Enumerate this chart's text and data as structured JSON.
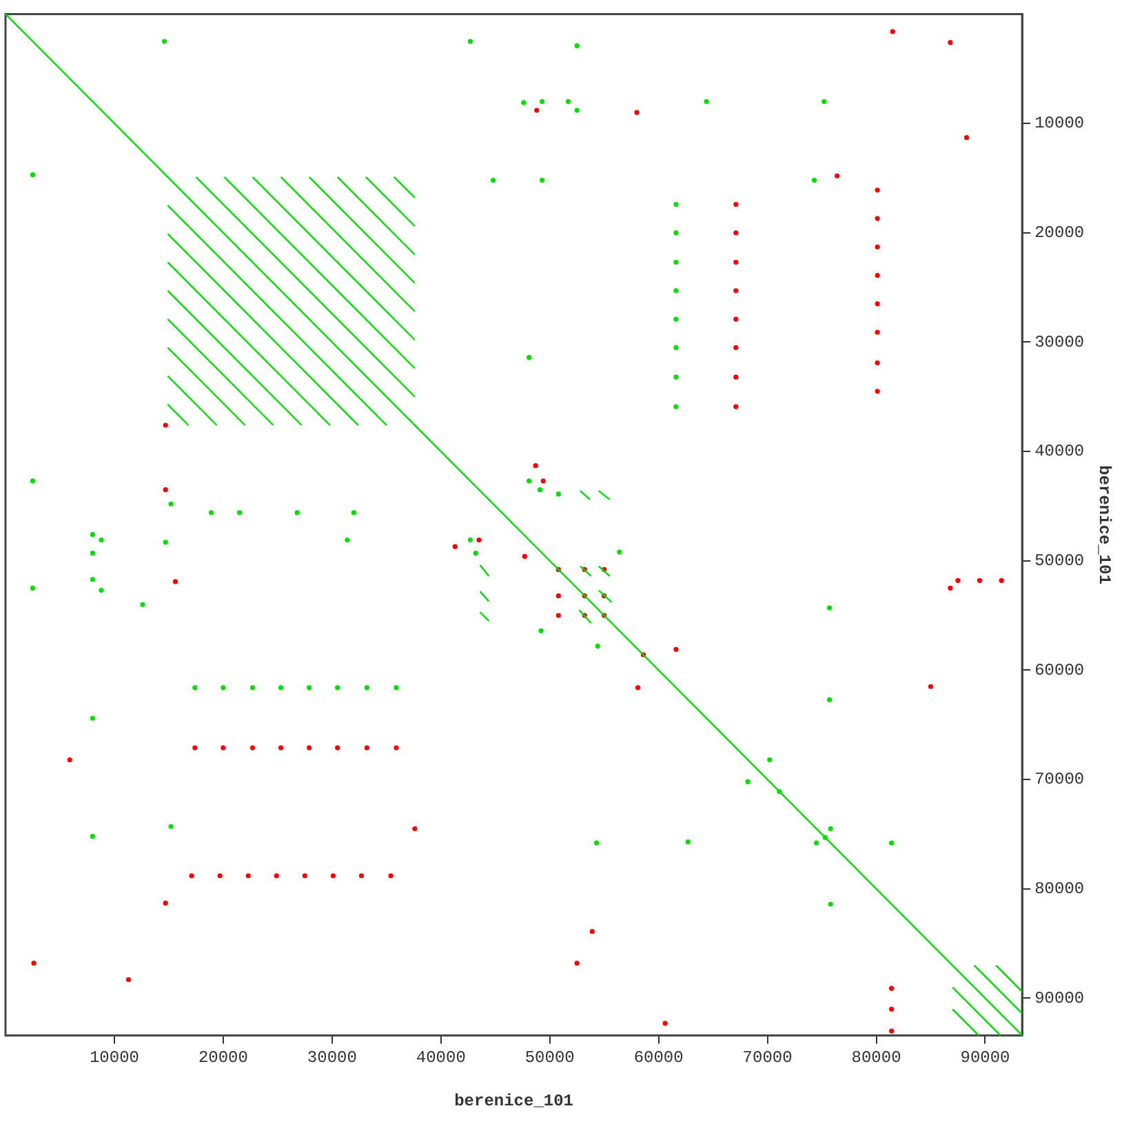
{
  "chart_data": {
    "type": "scatter",
    "xlabel": "berenice_101",
    "ylabel": "berenice_101",
    "xlim": [
      0,
      93400
    ],
    "ylim": [
      93400,
      0
    ],
    "xticks": [
      10000,
      20000,
      30000,
      40000,
      50000,
      60000,
      70000,
      80000,
      90000
    ],
    "yticks": [
      10000,
      20000,
      30000,
      40000,
      50000,
      60000,
      70000,
      80000,
      90000
    ],
    "legend": false,
    "series": [
      {
        "type": "line",
        "marker": "none",
        "color": "#00e000",
        "x": [
          0,
          93400
        ],
        "values": [
          0,
          93400
        ]
      },
      {
        "type": "line",
        "marker": "none",
        "color": "#00e000",
        "x": [
          17500,
          37600
        ],
        "values": [
          14900,
          35000
        ]
      },
      {
        "type": "line",
        "marker": "none",
        "color": "#00e000",
        "x": [
          20100,
          37600
        ],
        "values": [
          14900,
          32400
        ]
      },
      {
        "type": "line",
        "marker": "none",
        "color": "#00e000",
        "x": [
          22700,
          37600
        ],
        "values": [
          14900,
          29800
        ]
      },
      {
        "type": "line",
        "marker": "none",
        "color": "#00e000",
        "x": [
          25300,
          37600
        ],
        "values": [
          14900,
          27200
        ]
      },
      {
        "type": "line",
        "marker": "none",
        "color": "#00e000",
        "x": [
          27900,
          37600
        ],
        "values": [
          14900,
          24600
        ]
      },
      {
        "type": "line",
        "marker": "none",
        "color": "#00e000",
        "x": [
          30500,
          37600
        ],
        "values": [
          14900,
          22000
        ]
      },
      {
        "type": "line",
        "marker": "none",
        "color": "#00e000",
        "x": [
          33100,
          37600
        ],
        "values": [
          14900,
          19400
        ]
      },
      {
        "type": "line",
        "marker": "none",
        "color": "#00e000",
        "x": [
          35700,
          37600
        ],
        "values": [
          14900,
          16800
        ]
      },
      {
        "type": "line",
        "marker": "none",
        "color": "#00e000",
        "x": [
          14900,
          35000
        ],
        "values": [
          17500,
          37600
        ]
      },
      {
        "type": "line",
        "marker": "none",
        "color": "#00e000",
        "x": [
          14900,
          32400
        ],
        "values": [
          20100,
          37600
        ]
      },
      {
        "type": "line",
        "marker": "none",
        "color": "#00e000",
        "x": [
          14900,
          29800
        ],
        "values": [
          22700,
          37600
        ]
      },
      {
        "type": "line",
        "marker": "none",
        "color": "#00e000",
        "x": [
          14900,
          27200
        ],
        "values": [
          25300,
          37600
        ]
      },
      {
        "type": "line",
        "marker": "none",
        "color": "#00e000",
        "x": [
          14900,
          24600
        ],
        "values": [
          27900,
          37600
        ]
      },
      {
        "type": "line",
        "marker": "none",
        "color": "#00e000",
        "x": [
          14900,
          22000
        ],
        "values": [
          30500,
          37600
        ]
      },
      {
        "type": "line",
        "marker": "none",
        "color": "#00e000",
        "x": [
          14900,
          19400
        ],
        "values": [
          33100,
          37600
        ]
      },
      {
        "type": "line",
        "marker": "none",
        "color": "#00e000",
        "x": [
          14900,
          16800
        ],
        "values": [
          35700,
          37600
        ]
      },
      {
        "type": "line",
        "marker": "none",
        "color": "#00dc00",
        "x": [
          89000,
          93400
        ],
        "values": [
          87000,
          91400
        ]
      },
      {
        "type": "line",
        "marker": "none",
        "color": "#00d200",
        "x": [
          91000,
          93400
        ],
        "values": [
          87000,
          89400
        ]
      },
      {
        "type": "line",
        "marker": "none",
        "color": "#02de02",
        "x": [
          87000,
          91400
        ],
        "values": [
          89000,
          93400
        ]
      },
      {
        "type": "line",
        "marker": "none",
        "color": "#04d804",
        "x": [
          87000,
          89400
        ],
        "values": [
          91000,
          93400
        ]
      },
      {
        "type": "line",
        "marker": "none",
        "color": "#00dc00",
        "x": [
          43600,
          44400
        ],
        "values": [
          50400,
          51400
        ]
      },
      {
        "type": "line",
        "marker": "none",
        "color": "#00d200",
        "x": [
          43600,
          44400
        ],
        "values": [
          52800,
          53700
        ]
      },
      {
        "type": "line",
        "marker": "none",
        "color": "#00e600",
        "x": [
          43600,
          44400
        ],
        "values": [
          54700,
          55500
        ]
      },
      {
        "type": "line",
        "marker": "none",
        "color": "#02de02",
        "x": [
          52800,
          53800
        ],
        "values": [
          50500,
          51400
        ]
      },
      {
        "type": "line",
        "marker": "none",
        "color": "#04d804",
        "x": [
          54500,
          55500
        ],
        "values": [
          50500,
          51400
        ]
      },
      {
        "type": "line",
        "marker": "none",
        "color": "#00ec04",
        "x": [
          54500,
          55700
        ],
        "values": [
          52700,
          53800
        ]
      },
      {
        "type": "line",
        "marker": "none",
        "color": "#06e006",
        "x": [
          52700,
          53800
        ],
        "values": [
          54500,
          55700
        ]
      },
      {
        "type": "line",
        "marker": "none",
        "color": "#00d808",
        "x": [
          52800,
          53700
        ],
        "values": [
          43600,
          44400
        ]
      },
      {
        "type": "line",
        "marker": "none",
        "color": "#03e803",
        "x": [
          54500,
          55500
        ],
        "values": [
          43600,
          44400
        ]
      },
      {
        "type": "scatter",
        "marker": "circle",
        "color": "#00e000",
        "x": [
          14600,
          42700,
          47600,
          49300,
          51700,
          52500,
          52500,
          64400,
          75200,
          2500,
          44800,
          49300,
          74300,
          48100,
          61600,
          61600,
          61600,
          61600,
          61600,
          61600,
          61600,
          61600,
          2500,
          48100,
          49100,
          50800,
          56400,
          15200,
          18900,
          21500,
          26800,
          32000,
          31400,
          42700,
          8000,
          8800,
          8000,
          14700,
          43200,
          2500,
          8000,
          8800,
          12600,
          49200,
          17400,
          20000,
          22700,
          25300,
          27900,
          30500,
          33200,
          35900,
          8000,
          15200,
          8000,
          75700,
          54400,
          75700,
          70200,
          68200,
          71100,
          75800,
          74500,
          75300,
          54300,
          62700,
          81400,
          75800
        ],
        "values": [
          2500,
          2500,
          8100,
          8000,
          8000,
          2900,
          8800,
          8000,
          8000,
          14700,
          15200,
          15200,
          15200,
          31400,
          17400,
          20000,
          22700,
          25300,
          27900,
          30500,
          33200,
          35900,
          42700,
          42700,
          43500,
          43900,
          49200,
          44800,
          45600,
          45600,
          45600,
          45600,
          48100,
          48100,
          47600,
          48100,
          49300,
          48300,
          49300,
          52500,
          51700,
          52700,
          54000,
          56400,
          61600,
          61600,
          61600,
          61600,
          61600,
          61600,
          61600,
          61600,
          64400,
          74300,
          75200,
          54300,
          57800,
          62700,
          68200,
          70200,
          71100,
          74500,
          75800,
          75300,
          75800,
          75700,
          75800,
          81400
        ]
      },
      {
        "type": "scatter",
        "marker": "circle",
        "color": "#ff0000",
        "x": [
          48800,
          14700,
          14700,
          48700,
          49400,
          41300,
          43500,
          47700,
          81500,
          86800,
          58000,
          88300,
          76400,
          67100,
          67100,
          67100,
          67100,
          67100,
          67100,
          67100,
          67100,
          80100,
          80100,
          80100,
          80100,
          80100,
          80100,
          80100,
          80100,
          15600,
          5900,
          17400,
          20000,
          22700,
          25300,
          27900,
          30500,
          33200,
          35900,
          37600,
          17100,
          19700,
          22300,
          24900,
          27500,
          30100,
          32700,
          35400,
          14700,
          2600,
          11300,
          50800,
          50800,
          50800,
          53200,
          55000,
          53200,
          55000,
          53200,
          55000,
          58600,
          61600,
          58100,
          85000,
          86800,
          87500,
          89500,
          91500,
          53900,
          52500,
          81400,
          81400,
          81400,
          60600
        ],
        "values": [
          8800,
          37600,
          43500,
          41300,
          42700,
          48700,
          48100,
          49600,
          1600,
          2600,
          9000,
          11300,
          14800,
          17400,
          20000,
          22700,
          25300,
          27900,
          30500,
          33200,
          35900,
          16100,
          18700,
          21300,
          23900,
          26500,
          29100,
          31900,
          34500,
          51900,
          68200,
          67100,
          67100,
          67100,
          67100,
          67100,
          67100,
          67100,
          67100,
          74500,
          78800,
          78800,
          78800,
          78800,
          78800,
          78800,
          78800,
          78800,
          81300,
          86800,
          88300,
          50800,
          53200,
          55000,
          50800,
          50800,
          53200,
          53200,
          55000,
          55000,
          58600,
          58100,
          61600,
          61500,
          52500,
          51800,
          51800,
          51800,
          83900,
          86800,
          89100,
          91000,
          93000,
          92300
        ]
      }
    ]
  }
}
